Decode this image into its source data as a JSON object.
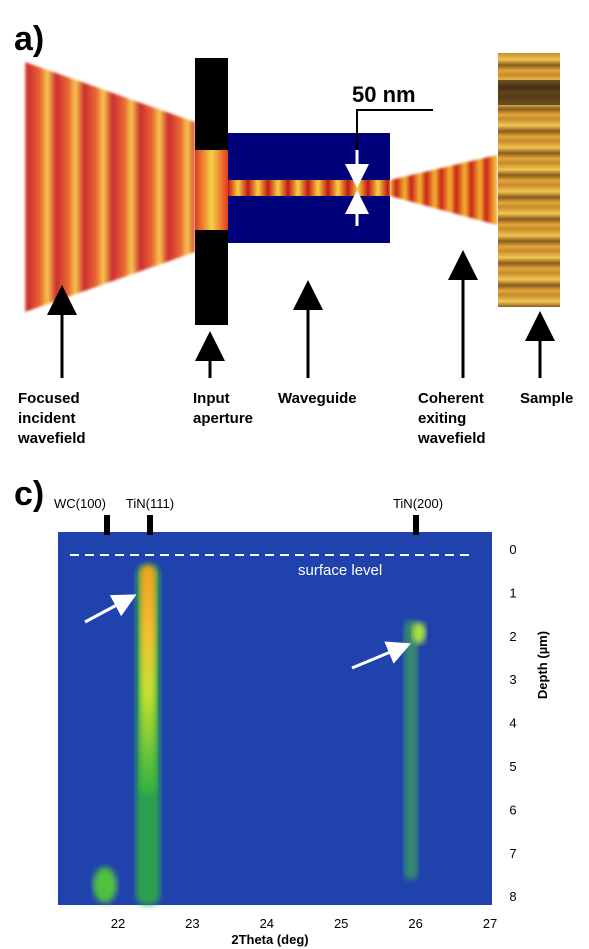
{
  "panel_a": {
    "label": "a)",
    "scale_label": "50 nm",
    "labels": [
      [
        "Focused",
        "incident",
        "wavefield"
      ],
      [
        "Input",
        "aperture"
      ],
      [
        "Waveguide"
      ],
      [
        "Coherent",
        "exiting",
        "wavefield"
      ],
      [
        "Sample"
      ]
    ]
  },
  "panel_c": {
    "label": "c)",
    "peaks": [
      "WC(100)",
      "TiN(111)",
      "TiN(200)"
    ],
    "annotation": "surface level",
    "x_ticks": [
      22,
      23,
      24,
      25,
      26,
      27
    ],
    "x_axis_label": "2Theta (deg)",
    "y_ticks": [
      0,
      1,
      2,
      3,
      4,
      5,
      6,
      7,
      8
    ],
    "y_axis_label": "Depth (µm)"
  }
}
